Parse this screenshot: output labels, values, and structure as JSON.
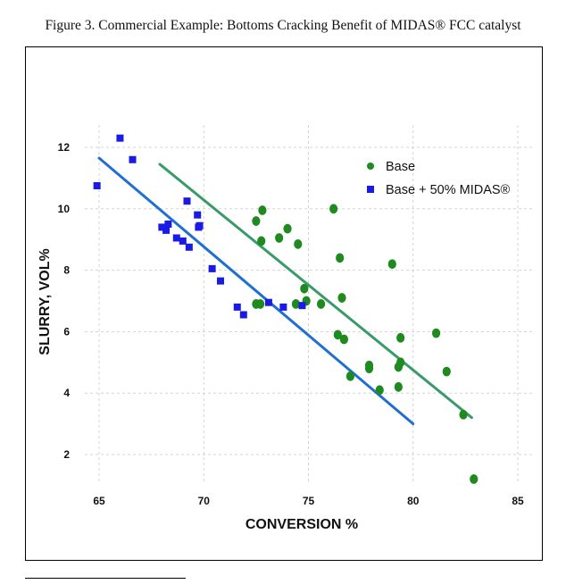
{
  "caption": "Figure 3. Commercial Example: Bottoms Cracking Benefit of MIDAS® FCC catalyst",
  "chart_data": {
    "type": "scatter",
    "xlabel": "CONVERSION %",
    "ylabel": "SLURRY, VOL%",
    "xlim": [
      65,
      85
    ],
    "ylim": [
      1,
      13
    ],
    "xticks": [
      65,
      70,
      75,
      80,
      85
    ],
    "yticks": [
      2,
      4,
      6,
      8,
      10,
      12
    ],
    "grid": true,
    "legend_position": "top-right",
    "series": [
      {
        "name": "Base",
        "marker": "circle",
        "color": "#1f8a1f",
        "points": [
          [
            72.5,
            9.6
          ],
          [
            72.8,
            9.95
          ],
          [
            72.75,
            8.95
          ],
          [
            73.6,
            9.05
          ],
          [
            74.0,
            9.35
          ],
          [
            74.5,
            8.85
          ],
          [
            72.5,
            6.9
          ],
          [
            72.7,
            6.9
          ],
          [
            74.8,
            7.4
          ],
          [
            74.9,
            7.0
          ],
          [
            74.4,
            6.9
          ],
          [
            75.6,
            6.9
          ],
          [
            76.2,
            10.0
          ],
          [
            76.5,
            8.4
          ],
          [
            76.6,
            7.1
          ],
          [
            76.4,
            5.9
          ],
          [
            76.7,
            5.75
          ],
          [
            77.0,
            4.55
          ],
          [
            77.9,
            4.9
          ],
          [
            77.9,
            4.8
          ],
          [
            78.4,
            4.1
          ],
          [
            79.0,
            8.2
          ],
          [
            79.4,
            5.8
          ],
          [
            79.3,
            4.85
          ],
          [
            79.4,
            5.0
          ],
          [
            79.3,
            4.2
          ],
          [
            81.1,
            5.95
          ],
          [
            81.6,
            4.7
          ],
          [
            82.4,
            3.3
          ],
          [
            82.9,
            1.2
          ]
        ],
        "trend": [
          [
            67.9,
            11.45
          ],
          [
            82.8,
            3.2
          ]
        ],
        "trend_color": "#3a9a6a"
      },
      {
        "name": "Base + 50% MIDAS®",
        "marker": "square",
        "color": "#1a1ae6",
        "points": [
          [
            64.9,
            10.75
          ],
          [
            66.0,
            12.3
          ],
          [
            66.6,
            11.6
          ],
          [
            68.0,
            9.4
          ],
          [
            68.2,
            9.3
          ],
          [
            68.3,
            9.5
          ],
          [
            68.7,
            9.05
          ],
          [
            69.0,
            8.95
          ],
          [
            69.2,
            10.25
          ],
          [
            69.3,
            8.75
          ],
          [
            69.7,
            9.8
          ],
          [
            69.75,
            9.4
          ],
          [
            69.8,
            9.45
          ],
          [
            70.4,
            8.05
          ],
          [
            70.8,
            7.65
          ],
          [
            71.6,
            6.8
          ],
          [
            71.9,
            6.55
          ],
          [
            73.1,
            6.95
          ],
          [
            73.8,
            6.8
          ],
          [
            74.7,
            6.85
          ]
        ],
        "trend": [
          [
            65.0,
            11.65
          ],
          [
            80.0,
            3.0
          ]
        ],
        "trend_color": "#1f6fd0"
      }
    ]
  }
}
